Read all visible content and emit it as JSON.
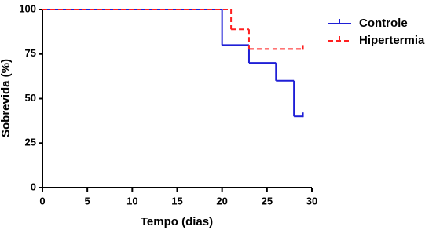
{
  "chart_data": {
    "type": "line",
    "step": true,
    "xlabel": "Tempo (dias)",
    "ylabel": "Sobrevida (%)",
    "xlim": [
      0,
      30
    ],
    "xticks": [
      0,
      5,
      10,
      15,
      20,
      25,
      30
    ],
    "ylim": [
      0,
      100
    ],
    "yticks": [
      0,
      25,
      50,
      75,
      100
    ],
    "grid": false,
    "legend": "upper right",
    "series": [
      {
        "name": "Controle",
        "color": "#1f1fd6",
        "dash": false,
        "x": [
          0,
          20,
          23,
          26,
          28,
          29
        ],
        "values": [
          100,
          80,
          70,
          60,
          40,
          40
        ]
      },
      {
        "name": "Hipertermia",
        "color": "#ff2020",
        "dash": true,
        "x": [
          0,
          21,
          23,
          29
        ],
        "values": [
          100,
          88.9,
          77.8,
          77.8
        ]
      }
    ]
  }
}
